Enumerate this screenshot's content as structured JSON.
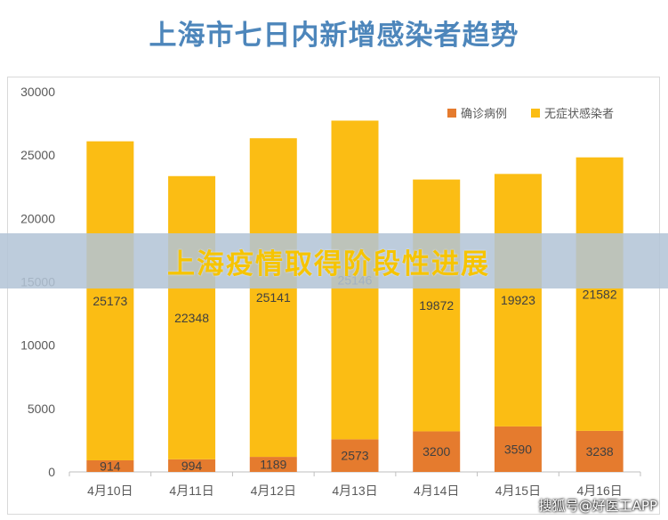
{
  "page_title": "上海市七日内新增感染者趋势",
  "overlay_banner": "上海疫情取得阶段性进展",
  "watermark": "搜狐号@好医工APP",
  "chart_data": {
    "type": "bar",
    "stacked": true,
    "title": "上海市七日内新增感染者趋势",
    "categories": [
      "4月10日",
      "4月11日",
      "4月12日",
      "4月13日",
      "4月14日",
      "4月15日",
      "4月16日"
    ],
    "series": [
      {
        "name": "确诊病例",
        "color": "#e57b2e",
        "values": [
          914,
          994,
          1189,
          2573,
          3200,
          3590,
          3238
        ]
      },
      {
        "name": "无症状感染者",
        "color": "#fbbd14",
        "values": [
          25173,
          22348,
          25141,
          25146,
          19872,
          19923,
          21582
        ]
      }
    ],
    "ylim": [
      0,
      30000
    ],
    "yticks": [
      0,
      5000,
      10000,
      15000,
      20000,
      25000,
      30000
    ],
    "grid": false,
    "legend_position": "top-right"
  }
}
